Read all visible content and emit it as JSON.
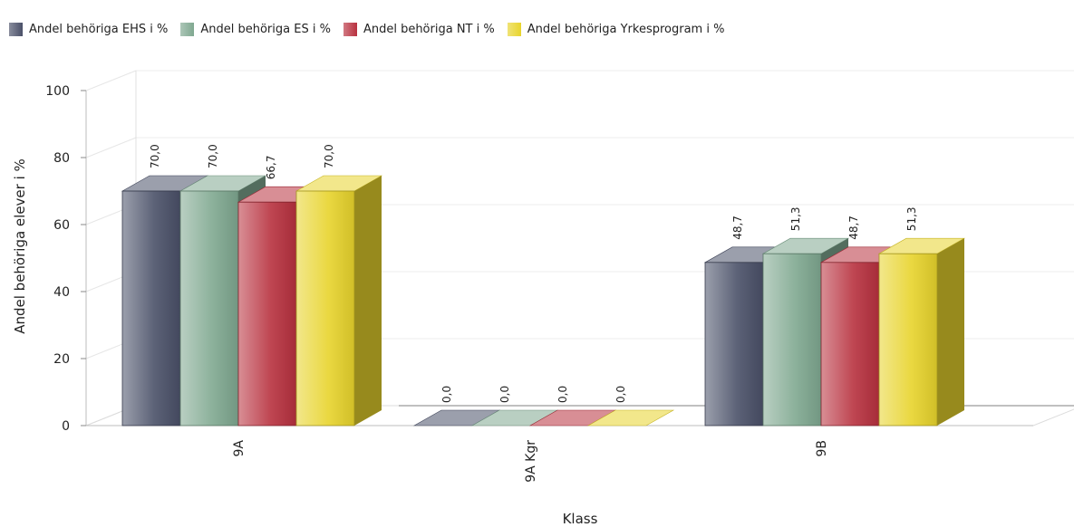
{
  "chart_data": {
    "type": "bar",
    "categories": [
      "9A",
      "9A Kgr",
      "9B"
    ],
    "series": [
      {
        "name": "Andel behöriga EHS i %",
        "values": [
          70.0,
          0.0,
          48.7
        ],
        "labels": [
          "70,0",
          "0,0",
          "48,7"
        ],
        "color": "#4a5068"
      },
      {
        "name": "Andel behöriga ES i %",
        "values": [
          70.0,
          0.0,
          51.3
        ],
        "labels": [
          "70,0",
          "0,0",
          "51,3"
        ],
        "color": "#7fa890"
      },
      {
        "name": "Andel behöriga NT i %",
        "values": [
          66.7,
          0.0,
          48.7
        ],
        "labels": [
          "66,7",
          "0,0",
          "48,7"
        ],
        "color": "#b8313f"
      },
      {
        "name": "Andel behöriga Yrkesprogram i %",
        "values": [
          70.0,
          0.0,
          51.3
        ],
        "labels": [
          "70,0",
          "0,0",
          "51,3"
        ],
        "color": "#e8d42c"
      }
    ],
    "xlabel": "Klass",
    "ylabel": "Andel behöriga elever i %",
    "ylim": [
      0,
      100
    ],
    "yticks": [
      0,
      20,
      40,
      60,
      80,
      100
    ],
    "grid": true,
    "legend_position": "top-left"
  }
}
